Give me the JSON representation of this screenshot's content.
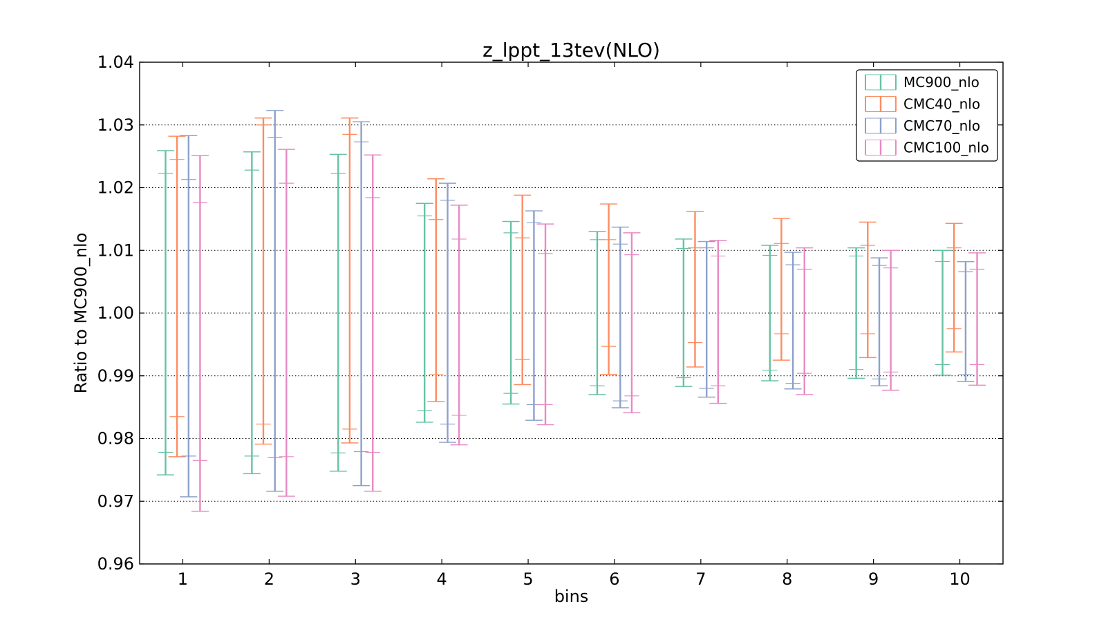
{
  "chart_data": {
    "type": "errorbar",
    "title": "z_lppt_13tev(NLO)",
    "xlabel": "bins",
    "ylabel": "Ratio to MC900_nlo",
    "ylim": [
      0.96,
      1.04
    ],
    "xlim": [
      0.5,
      10.5
    ],
    "yticks": [
      "0.96",
      "0.97",
      "0.98",
      "0.99",
      "1.00",
      "1.01",
      "1.02",
      "1.03",
      "1.04"
    ],
    "xticks": [
      "1",
      "2",
      "3",
      "4",
      "5",
      "6",
      "7",
      "8",
      "9",
      "10"
    ],
    "grid": "horizontal-dotted",
    "legend_position": "top-right",
    "series": [
      {
        "name": "MC900_nlo",
        "color": "#66c2a5",
        "outer": [
          [
            0.9742,
            1.0259
          ],
          [
            0.9744,
            1.0257
          ],
          [
            0.9748,
            1.0253
          ],
          [
            0.9826,
            1.0175
          ],
          [
            0.9855,
            1.0146
          ],
          [
            0.987,
            1.013
          ],
          [
            0.9883,
            1.0118
          ],
          [
            0.9892,
            1.0108
          ],
          [
            0.9896,
            1.0104
          ],
          [
            0.9901,
            1.01
          ]
        ],
        "inner": [
          [
            0.9778,
            1.0223
          ],
          [
            0.9772,
            1.0228
          ],
          [
            0.9777,
            1.0223
          ],
          [
            0.9845,
            1.0155
          ],
          [
            0.9872,
            1.0128
          ],
          [
            0.9884,
            1.0117
          ],
          [
            0.9897,
            1.0103
          ],
          [
            0.9909,
            1.0092
          ],
          [
            0.991,
            1.0091
          ],
          [
            0.9918,
            1.0082
          ]
        ]
      },
      {
        "name": "CMC40_nlo",
        "color": "#fc8d62",
        "outer": [
          [
            0.9771,
            1.0282
          ],
          [
            0.9791,
            1.0311
          ],
          [
            0.9793,
            1.0311
          ],
          [
            0.9859,
            1.0214
          ],
          [
            0.9886,
            1.0188
          ],
          [
            0.9902,
            1.0174
          ],
          [
            0.9914,
            1.0162
          ],
          [
            0.9925,
            1.0151
          ],
          [
            0.9929,
            1.0145
          ],
          [
            0.9938,
            1.0143
          ]
        ],
        "inner": [
          [
            0.9835,
            1.0245
          ],
          [
            0.9823,
            1.03
          ],
          [
            0.9815,
            1.0285
          ],
          [
            0.9902,
            1.0149
          ],
          [
            0.9926,
            1.012
          ],
          [
            0.9947,
            1.0117
          ],
          [
            0.9953,
            1.0104
          ],
          [
            0.9967,
            1.0111
          ],
          [
            0.9967,
            1.0108
          ],
          [
            0.9975,
            1.0104
          ]
        ]
      },
      {
        "name": "CMC70_nlo",
        "color": "#8da0cb",
        "outer": [
          [
            0.9707,
            1.0283
          ],
          [
            0.9716,
            1.0323
          ],
          [
            0.9725,
            1.0305
          ],
          [
            0.9794,
            1.0207
          ],
          [
            0.9829,
            1.0163
          ],
          [
            0.9849,
            1.0137
          ],
          [
            0.9866,
            1.0114
          ],
          [
            0.9879,
            1.0097
          ],
          [
            0.9884,
            1.0088
          ],
          [
            0.9891,
            1.0082
          ]
        ],
        "inner": [
          [
            0.9772,
            1.0213
          ],
          [
            0.977,
            1.028
          ],
          [
            0.9779,
            1.0273
          ],
          [
            0.9823,
            1.018
          ],
          [
            0.9854,
            1.0144
          ],
          [
            0.986,
            1.011
          ],
          [
            0.988,
            1.0104
          ],
          [
            0.9888,
            1.0077
          ],
          [
            0.9895,
            1.0076
          ],
          [
            0.9902,
            1.0066
          ]
        ]
      },
      {
        "name": "CMC100_nlo",
        "color": "#e78ac3",
        "outer": [
          [
            0.9684,
            1.0251
          ],
          [
            0.9708,
            1.0261
          ],
          [
            0.9716,
            1.0252
          ],
          [
            0.979,
            1.0172
          ],
          [
            0.9822,
            1.0142
          ],
          [
            0.9841,
            1.0128
          ],
          [
            0.9856,
            1.0116
          ],
          [
            0.987,
            1.0104
          ],
          [
            0.9877,
            1.01
          ],
          [
            0.9885,
            1.0096
          ]
        ],
        "inner": [
          [
            0.9765,
            1.0176
          ],
          [
            0.9771,
            1.0207
          ],
          [
            0.9778,
            1.0184
          ],
          [
            0.9837,
            1.0118
          ],
          [
            0.9854,
            1.0095
          ],
          [
            0.9868,
            1.0093
          ],
          [
            0.9884,
            1.0091
          ],
          [
            0.9904,
            1.007
          ],
          [
            0.9906,
            1.0072
          ],
          [
            0.9918,
            1.007
          ]
        ]
      }
    ]
  }
}
